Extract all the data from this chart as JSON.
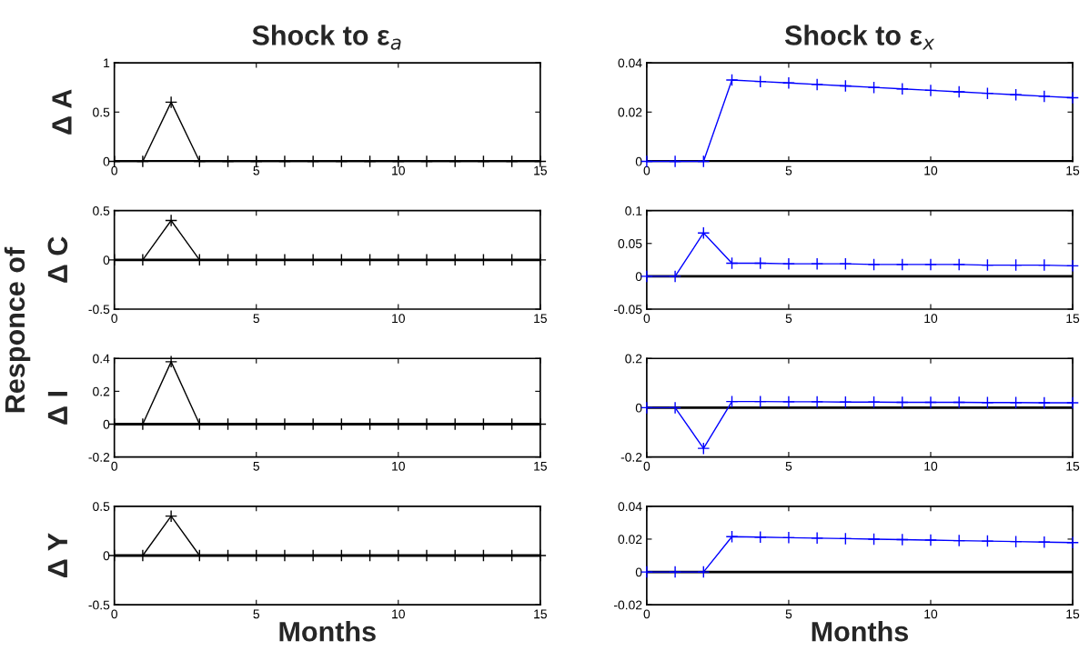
{
  "chart_data": [
    {
      "type": "line",
      "title": "Shock to ε$_{a}$",
      "ylabel": "Δ A",
      "annotations": [
        "Responce of"
      ],
      "x": [
        0,
        1,
        2,
        3,
        4,
        5,
        6,
        7,
        8,
        9,
        10,
        11,
        12,
        13,
        14,
        15
      ],
      "xlim": [
        0,
        15
      ],
      "xticks": [
        0,
        5,
        10,
        15
      ],
      "ylim": [
        0,
        1
      ],
      "yticks": [
        0,
        0.5,
        1
      ],
      "marker": "cross",
      "ref_lines": [
        {
          "axis": "y",
          "value": 0,
          "color": "#000000"
        }
      ],
      "series": [
        {
          "color": "#000000",
          "values": [
            0,
            0,
            0.6,
            0,
            0,
            0,
            0,
            0,
            0,
            0,
            0,
            0,
            0,
            0,
            0,
            0
          ]
        }
      ]
    },
    {
      "type": "line",
      "title": "Shock to ε$_{x}$",
      "x": [
        0,
        1,
        2,
        3,
        4,
        5,
        6,
        7,
        8,
        9,
        10,
        11,
        12,
        13,
        14,
        15
      ],
      "xlim": [
        0,
        15
      ],
      "xticks": [
        0,
        5,
        10,
        15
      ],
      "ylim": [
        0,
        0.04
      ],
      "yticks": [
        0,
        0.02,
        0.04
      ],
      "marker": "cross",
      "ref_lines": [
        {
          "axis": "y",
          "value": 0,
          "color": "#000000"
        }
      ],
      "series": [
        {
          "color": "#0000ff",
          "values": [
            0,
            0,
            0,
            0.033,
            0.0324,
            0.0318,
            0.0312,
            0.0306,
            0.03,
            0.0294,
            0.0288,
            0.0282,
            0.0276,
            0.027,
            0.0264,
            0.0258
          ]
        }
      ]
    },
    {
      "type": "line",
      "ylabel": "Δ C",
      "x": [
        0,
        1,
        2,
        3,
        4,
        5,
        6,
        7,
        8,
        9,
        10,
        11,
        12,
        13,
        14,
        15
      ],
      "xlim": [
        0,
        15
      ],
      "xticks": [
        0,
        5,
        10,
        15
      ],
      "ylim": [
        -0.5,
        0.5
      ],
      "yticks": [
        -0.5,
        0,
        0.5
      ],
      "marker": "cross",
      "ref_lines": [
        {
          "axis": "y",
          "value": 0,
          "color": "#000000"
        }
      ],
      "series": [
        {
          "color": "#000000",
          "values": [
            0,
            0,
            0.4,
            0,
            0,
            0,
            0,
            0,
            0,
            0,
            0,
            0,
            0,
            0,
            0,
            0
          ]
        }
      ]
    },
    {
      "type": "line",
      "x": [
        0,
        1,
        2,
        3,
        4,
        5,
        6,
        7,
        8,
        9,
        10,
        11,
        12,
        13,
        14,
        15
      ],
      "xlim": [
        0,
        15
      ],
      "xticks": [
        0,
        5,
        10,
        15
      ],
      "ylim": [
        -0.05,
        0.1
      ],
      "yticks": [
        -0.05,
        0,
        0.05,
        0.1
      ],
      "marker": "cross",
      "ref_lines": [
        {
          "axis": "y",
          "value": 0,
          "color": "#000000"
        }
      ],
      "series": [
        {
          "color": "#0000ff",
          "values": [
            0,
            0,
            0.066,
            0.02,
            0.02,
            0.019,
            0.019,
            0.019,
            0.018,
            0.018,
            0.018,
            0.018,
            0.017,
            0.017,
            0.017,
            0.016
          ]
        }
      ]
    },
    {
      "type": "line",
      "ylabel": "Δ I",
      "x": [
        0,
        1,
        2,
        3,
        4,
        5,
        6,
        7,
        8,
        9,
        10,
        11,
        12,
        13,
        14,
        15
      ],
      "xlim": [
        0,
        15
      ],
      "xticks": [
        0,
        5,
        10,
        15
      ],
      "ylim": [
        -0.2,
        0.4
      ],
      "yticks": [
        -0.2,
        0,
        0.2,
        0.4
      ],
      "marker": "cross",
      "ref_lines": [
        {
          "axis": "y",
          "value": 0,
          "color": "#000000"
        }
      ],
      "series": [
        {
          "color": "#000000",
          "values": [
            0,
            0,
            0.38,
            0,
            0,
            0,
            0,
            0,
            0,
            0,
            0,
            0,
            0,
            0,
            0,
            0
          ]
        }
      ]
    },
    {
      "type": "line",
      "x": [
        0,
        1,
        2,
        3,
        4,
        5,
        6,
        7,
        8,
        9,
        10,
        11,
        12,
        13,
        14,
        15
      ],
      "xlim": [
        0,
        15
      ],
      "xticks": [
        0,
        5,
        10,
        15
      ],
      "ylim": [
        -0.2,
        0.2
      ],
      "yticks": [
        -0.2,
        0,
        0.2
      ],
      "marker": "cross",
      "ref_lines": [
        {
          "axis": "y",
          "value": 0,
          "color": "#000000"
        }
      ],
      "series": [
        {
          "color": "#0000ff",
          "values": [
            0,
            0,
            -0.165,
            0.025,
            0.025,
            0.024,
            0.024,
            0.023,
            0.023,
            0.022,
            0.022,
            0.022,
            0.021,
            0.021,
            0.02,
            0.02
          ]
        }
      ]
    },
    {
      "type": "line",
      "ylabel": "Δ Y",
      "xlabel": "Months",
      "x": [
        0,
        1,
        2,
        3,
        4,
        5,
        6,
        7,
        8,
        9,
        10,
        11,
        12,
        13,
        14,
        15
      ],
      "xlim": [
        0,
        15
      ],
      "xticks": [
        0,
        5,
        10,
        15
      ],
      "ylim": [
        -0.5,
        0.5
      ],
      "yticks": [
        -0.5,
        0,
        0.5
      ],
      "marker": "cross",
      "ref_lines": [
        {
          "axis": "y",
          "value": 0,
          "color": "#000000"
        }
      ],
      "series": [
        {
          "color": "#000000",
          "values": [
            0,
            0,
            0.4,
            0,
            0,
            0,
            0,
            0,
            0,
            0,
            0,
            0,
            0,
            0,
            0,
            0
          ]
        }
      ]
    },
    {
      "type": "line",
      "xlabel": "Months",
      "x": [
        0,
        1,
        2,
        3,
        4,
        5,
        6,
        7,
        8,
        9,
        10,
        11,
        12,
        13,
        14,
        15
      ],
      "xlim": [
        0,
        15
      ],
      "xticks": [
        0,
        5,
        10,
        15
      ],
      "ylim": [
        -0.02,
        0.04
      ],
      "yticks": [
        -0.02,
        0,
        0.02,
        0.04
      ],
      "marker": "cross",
      "ref_lines": [
        {
          "axis": "y",
          "value": 0,
          "color": "#000000"
        }
      ],
      "series": [
        {
          "color": "#0000ff",
          "values": [
            0,
            0,
            0,
            0.0215,
            0.0212,
            0.0209,
            0.0206,
            0.0203,
            0.02,
            0.0197,
            0.0194,
            0.0191,
            0.0188,
            0.0185,
            0.0182,
            0.0179
          ]
        }
      ]
    }
  ]
}
